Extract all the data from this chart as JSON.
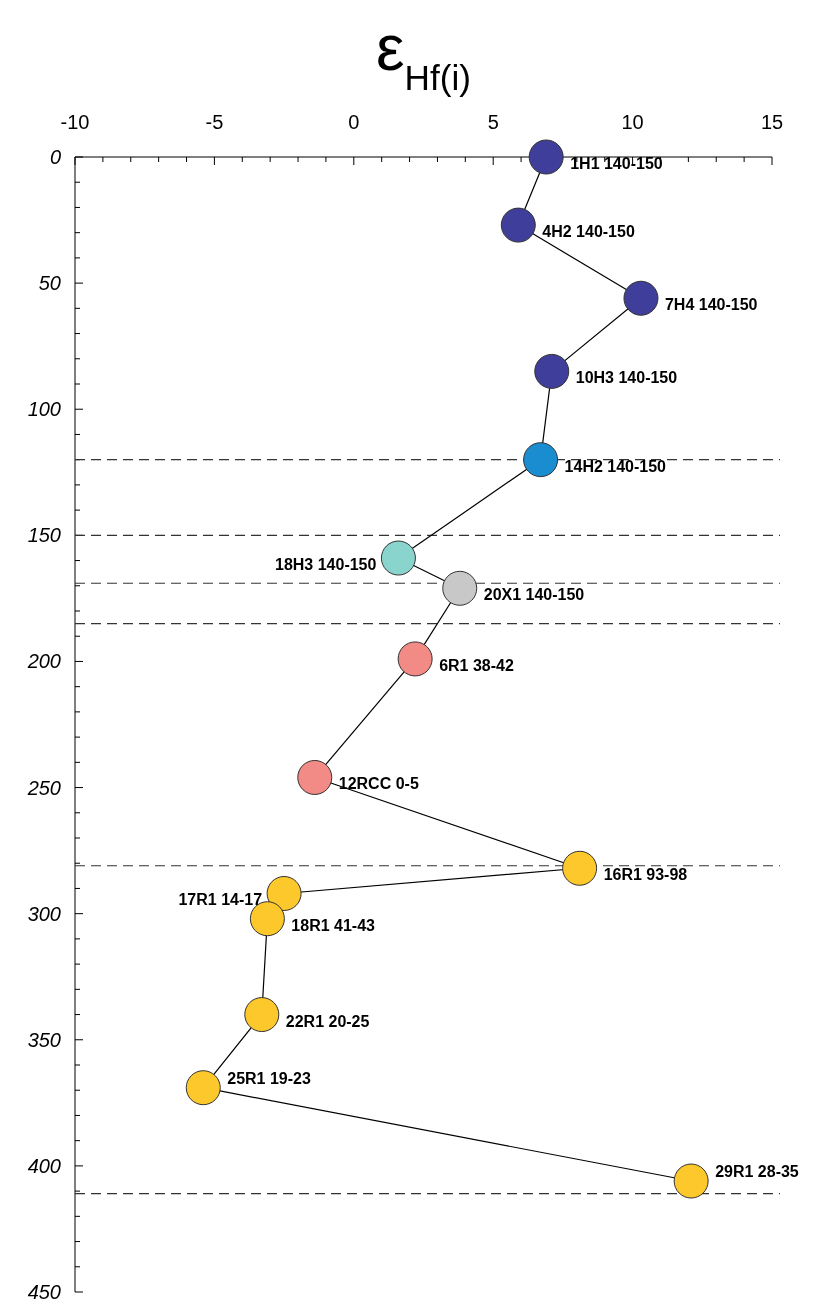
{
  "chart_data": {
    "type": "line",
    "xlabel": "ε$_{Hf(i)}$",
    "xlim": [
      -10,
      15
    ],
    "xticks": [
      -10,
      {
        "value": -9,
        "label": null
      },
      {
        "value": -8,
        "label": null
      },
      {
        "value": -7,
        "label": null
      },
      {
        "value": -6,
        "label": null
      },
      -5,
      {
        "value": -4,
        "label": null
      },
      {
        "value": -3,
        "label": null
      },
      {
        "value": -2,
        "label": null
      },
      {
        "value": -1,
        "label": null
      },
      0,
      {
        "value": 1,
        "label": null
      },
      {
        "value": 2,
        "label": null
      },
      {
        "value": 3,
        "label": null
      },
      {
        "value": 4,
        "label": null
      },
      5,
      {
        "value": 6,
        "label": null
      },
      {
        "value": 7,
        "label": null
      },
      {
        "value": 8,
        "label": null
      },
      {
        "value": 9,
        "label": null
      },
      10,
      {
        "value": 11,
        "label": null
      },
      {
        "value": 12,
        "label": null
      },
      {
        "value": 13,
        "label": null
      },
      {
        "value": 14,
        "label": null
      },
      15
    ],
    "ylim": [
      450,
      0
    ],
    "yticks": [
      0,
      {
        "value": 10,
        "label": null
      },
      {
        "value": 20,
        "label": null
      },
      {
        "value": 30,
        "label": null
      },
      {
        "value": 40,
        "label": null
      },
      50,
      {
        "value": 60,
        "label": null
      },
      {
        "value": 70,
        "label": null
      },
      {
        "value": 80,
        "label": null
      },
      {
        "value": 90,
        "label": null
      },
      100,
      {
        "value": 110,
        "label": null
      },
      {
        "value": 120,
        "label": null
      },
      {
        "value": 130,
        "label": null
      },
      {
        "value": 140,
        "label": null
      },
      150,
      {
        "value": 160,
        "label": null
      },
      {
        "value": 170,
        "label": null
      },
      {
        "value": 180,
        "label": null
      },
      {
        "value": 190,
        "label": null
      },
      200,
      {
        "value": 210,
        "label": null
      },
      {
        "value": 220,
        "label": null
      },
      {
        "value": 230,
        "label": null
      },
      {
        "value": 240,
        "label": null
      },
      250,
      {
        "value": 260,
        "label": null
      },
      {
        "value": 270,
        "label": null
      },
      {
        "value": 280,
        "label": null
      },
      {
        "value": 290,
        "label": null
      },
      300,
      {
        "value": 310,
        "label": null
      },
      {
        "value": 320,
        "label": null
      },
      {
        "value": 330,
        "label": null
      },
      {
        "value": 340,
        "label": null
      },
      350,
      {
        "value": 360,
        "label": null
      },
      {
        "value": 370,
        "label": null
      },
      {
        "value": 380,
        "label": null
      },
      {
        "value": 390,
        "label": null
      },
      400,
      {
        "value": 410,
        "label": null
      },
      {
        "value": 420,
        "label": null
      },
      {
        "value": 430,
        "label": null
      },
      {
        "value": 440,
        "label": null
      },
      450
    ],
    "marker": "circle",
    "line_style": "solid",
    "grid": false,
    "series": [
      {
        "color": "#000000",
        "x": [
          6.9,
          5.9,
          10.3,
          7.1,
          6.7,
          1.6,
          3.8,
          2.2,
          -1.4,
          8.1,
          -2.5,
          -3.1,
          -3.3,
          -5.4,
          12.1
        ],
        "values": [
          0,
          27,
          56,
          85,
          120,
          159,
          171,
          199,
          246,
          282,
          292,
          302,
          340,
          369,
          406
        ],
        "colors": [
          "#3f3f9b",
          "#3f3f9b",
          "#3f3f9b",
          "#3f3f9b",
          "#1a8dd0",
          "#8ad4ce",
          "#c8c8c8",
          "#f28a85",
          "#f28a85",
          "#fcc82c",
          "#fcc82c",
          "#fcc82c",
          "#fcc82c",
          "#fcc82c",
          "#fcc82c"
        ]
      }
    ],
    "ref_lines": [
      {
        "axis": "y",
        "value": 120,
        "color": "#333333",
        "line_style": "dashed"
      },
      {
        "axis": "y",
        "value": 150,
        "color": "#333333",
        "line_style": "dashed"
      },
      {
        "axis": "y",
        "value": 169,
        "color": "#333333",
        "line_style": "dashed"
      },
      {
        "axis": "y",
        "value": 185,
        "color": "#333333",
        "line_style": "dashed"
      },
      {
        "axis": "y",
        "value": 281,
        "color": "#333333",
        "line_style": "dashed"
      },
      {
        "axis": "y",
        "value": 411,
        "color": "#333333",
        "line_style": "dashed"
      }
    ],
    "annotations": [
      {
        "text": "1H1 140-150",
        "x": 6.9,
        "y": 0
      },
      {
        "text": "4H2 140-150",
        "x": 5.9,
        "y": 27
      },
      {
        "text": "7H4 140-150",
        "x": 10.3,
        "y": 56
      },
      {
        "text": "10H3 140-150",
        "x": 7.1,
        "y": 85
      },
      {
        "text": "14H2 140-150",
        "x": 6.7,
        "y": 120
      },
      {
        "text": "18H3 140-150",
        "x": 1.6,
        "y": 159
      },
      {
        "text": "20X1 140-150",
        "x": 3.8,
        "y": 171
      },
      {
        "text": "6R1 38-42",
        "x": 2.2,
        "y": 199
      },
      {
        "text": "12RCC 0-5",
        "x": -1.4,
        "y": 246
      },
      {
        "text": "16R1 93-98",
        "x": 8.1,
        "y": 282
      },
      {
        "text": "17R1 14-17",
        "x": -2.5,
        "y": 292
      },
      {
        "text": "18R1 41-43",
        "x": -3.1,
        "y": 302
      },
      {
        "text": "22R1 20-25",
        "x": -3.3,
        "y": 340
      },
      {
        "text": "25R1 19-23",
        "x": -5.4,
        "y": 369
      },
      {
        "text": "29R1 28-35",
        "x": 12.1,
        "y": 406
      }
    ]
  }
}
